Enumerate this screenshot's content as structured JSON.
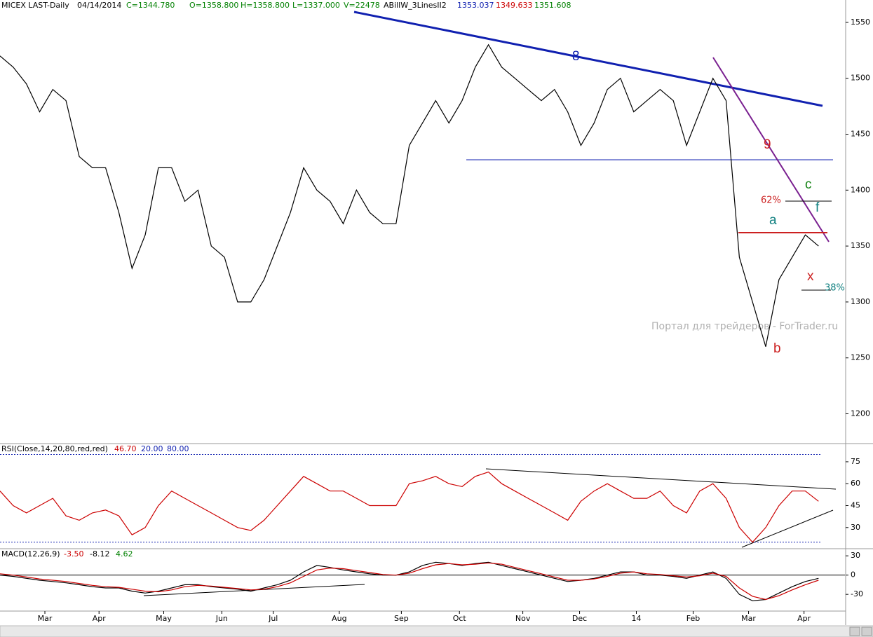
{
  "chart_data": [
    {
      "type": "line",
      "title": "MICEX LAST-Daily",
      "header": [
        "04/14/2014",
        "C=1344.780",
        "O=1358.800",
        "H=1358.800",
        "L=1337.000",
        "V=22478",
        "ABillW_3LinesII2",
        "1353.037",
        "1349.633",
        "1351.608"
      ],
      "annotations": [
        "8",
        "9",
        "c",
        "62%",
        "a",
        "f",
        "x",
        "38%",
        "b",
        "Портал для трейдеров - ForTrader.ru"
      ],
      "xlim": [
        0,
        64
      ],
      "ylim": [
        1174,
        1570
      ],
      "yticks": [
        1200,
        1250,
        1300,
        1350,
        1400,
        1450,
        1500,
        1550
      ],
      "series": [
        {
          "name": "MICEX",
          "color": "#000000",
          "x": [
            0,
            1,
            2,
            3,
            4,
            5,
            6,
            7,
            8,
            9,
            10,
            11,
            12,
            13,
            14,
            15,
            16,
            17,
            18,
            19,
            20,
            21,
            22,
            23,
            24,
            25,
            26,
            27,
            28,
            29,
            30,
            31,
            32,
            33,
            34,
            35,
            36,
            37,
            38,
            39,
            40,
            41,
            42,
            43,
            44,
            45,
            46,
            47,
            48,
            49,
            50,
            51,
            52,
            53,
            54,
            55,
            56,
            57,
            58,
            59,
            60,
            61,
            62
          ],
          "values": [
            1520,
            1510,
            1495,
            1470,
            1490,
            1480,
            1430,
            1420,
            1420,
            1380,
            1330,
            1360,
            1420,
            1420,
            1390,
            1400,
            1350,
            1340,
            1300,
            1300,
            1320,
            1350,
            1380,
            1420,
            1400,
            1390,
            1370,
            1400,
            1380,
            1370,
            1370,
            1440,
            1460,
            1480,
            1460,
            1480,
            1510,
            1530,
            1510,
            1500,
            1490,
            1480,
            1490,
            1470,
            1440,
            1460,
            1490,
            1500,
            1470,
            1480,
            1490,
            1480,
            1440,
            1470,
            1500,
            1480,
            1340,
            1300,
            1260,
            1320,
            1340,
            1360,
            1350
          ]
        }
      ]
    },
    {
      "type": "line",
      "title": "RSI(Close,14,20,80,red,red)",
      "header": [
        "46.70"
      ],
      "levels": [
        {
          "value": 20,
          "label": "20.00"
        },
        {
          "value": 80,
          "label": "80.00"
        }
      ],
      "xlim": [
        0,
        64
      ],
      "ylim": [
        16,
        86
      ],
      "yticks": [
        30,
        45,
        60,
        75
      ],
      "series": [
        {
          "name": "RSI",
          "color": "#cc0000",
          "x": [
            0,
            1,
            2,
            3,
            4,
            5,
            6,
            7,
            8,
            9,
            10,
            11,
            12,
            13,
            14,
            15,
            16,
            17,
            18,
            19,
            20,
            21,
            22,
            23,
            24,
            25,
            26,
            27,
            28,
            29,
            30,
            31,
            32,
            33,
            34,
            35,
            36,
            37,
            38,
            39,
            40,
            41,
            42,
            43,
            44,
            45,
            46,
            47,
            48,
            49,
            50,
            51,
            52,
            53,
            54,
            55,
            56,
            57,
            58,
            59,
            60,
            61,
            62
          ],
          "values": [
            55,
            45,
            40,
            45,
            50,
            38,
            35,
            40,
            42,
            38,
            25,
            30,
            45,
            55,
            50,
            45,
            40,
            35,
            30,
            28,
            35,
            45,
            55,
            65,
            60,
            55,
            55,
            50,
            45,
            45,
            45,
            60,
            62,
            65,
            60,
            58,
            65,
            68,
            60,
            55,
            50,
            45,
            40,
            35,
            48,
            55,
            60,
            55,
            50,
            50,
            55,
            45,
            40,
            55,
            60,
            50,
            30,
            20,
            30,
            45,
            55,
            55,
            48
          ]
        }
      ]
    },
    {
      "type": "line",
      "title": "MACD(12,26,9)",
      "header": [
        "-3.50",
        "-8.12",
        "4.62"
      ],
      "xlim": [
        0,
        64
      ],
      "ylim": [
        -56,
        40
      ],
      "yticks": [
        -30,
        0,
        30
      ],
      "xticks": [
        {
          "value": 3.4,
          "label": "Mar"
        },
        {
          "value": 7.5,
          "label": "Apr"
        },
        {
          "value": 12.4,
          "label": "May"
        },
        {
          "value": 16.8,
          "label": "Jun"
        },
        {
          "value": 20.7,
          "label": "Jul"
        },
        {
          "value": 25.7,
          "label": "Aug"
        },
        {
          "value": 30.4,
          "label": "Sep"
        },
        {
          "value": 34.8,
          "label": "Oct"
        },
        {
          "value": 39.6,
          "label": "Nov"
        },
        {
          "value": 43.9,
          "label": "Dec"
        },
        {
          "value": 48.2,
          "label": "14"
        },
        {
          "value": 52.5,
          "label": "Feb"
        },
        {
          "value": 56.7,
          "label": "Mar"
        },
        {
          "value": 60.9,
          "label": "Apr"
        }
      ],
      "series": [
        {
          "name": "MACD",
          "color": "#000000",
          "x": [
            0,
            1,
            2,
            3,
            4,
            5,
            6,
            7,
            8,
            9,
            10,
            11,
            12,
            13,
            14,
            15,
            16,
            17,
            18,
            19,
            20,
            21,
            22,
            23,
            24,
            25,
            26,
            27,
            28,
            29,
            30,
            31,
            32,
            33,
            34,
            35,
            36,
            37,
            38,
            39,
            40,
            41,
            42,
            43,
            44,
            45,
            46,
            47,
            48,
            49,
            50,
            51,
            52,
            53,
            54,
            55,
            56,
            57,
            58,
            59,
            60,
            61,
            62
          ],
          "values": [
            0,
            -2,
            -5,
            -8,
            -10,
            -12,
            -15,
            -18,
            -20,
            -20,
            -25,
            -28,
            -25,
            -20,
            -15,
            -15,
            -18,
            -20,
            -22,
            -25,
            -20,
            -15,
            -8,
            5,
            15,
            12,
            8,
            5,
            2,
            0,
            0,
            5,
            15,
            20,
            18,
            15,
            18,
            20,
            15,
            10,
            5,
            0,
            -5,
            -10,
            -8,
            -5,
            0,
            5,
            5,
            0,
            0,
            -2,
            -5,
            0,
            5,
            -5,
            -30,
            -40,
            -38,
            -28,
            -18,
            -10,
            -5
          ]
        },
        {
          "name": "Signal",
          "color": "#cc0000",
          "x": [
            0,
            1,
            2,
            3,
            4,
            5,
            6,
            7,
            8,
            9,
            10,
            11,
            12,
            13,
            14,
            15,
            16,
            17,
            18,
            19,
            20,
            21,
            22,
            23,
            24,
            25,
            26,
            27,
            28,
            29,
            30,
            31,
            32,
            33,
            34,
            35,
            36,
            37,
            38,
            39,
            40,
            41,
            42,
            43,
            44,
            45,
            46,
            47,
            48,
            49,
            50,
            51,
            52,
            53,
            54,
            55,
            56,
            57,
            58,
            59,
            60,
            61,
            62
          ],
          "values": [
            2,
            0,
            -3,
            -6,
            -8,
            -10,
            -13,
            -16,
            -18,
            -19,
            -22,
            -25,
            -26,
            -23,
            -18,
            -16,
            -17,
            -19,
            -21,
            -23,
            -22,
            -18,
            -12,
            -2,
            8,
            11,
            10,
            7,
            4,
            1,
            0,
            3,
            10,
            16,
            18,
            16,
            17,
            19,
            17,
            12,
            7,
            2,
            -3,
            -8,
            -8,
            -6,
            -2,
            3,
            5,
            2,
            1,
            -1,
            -3,
            -1,
            3,
            -2,
            -20,
            -33,
            -38,
            -32,
            -23,
            -15,
            -8
          ]
        }
      ]
    }
  ]
}
